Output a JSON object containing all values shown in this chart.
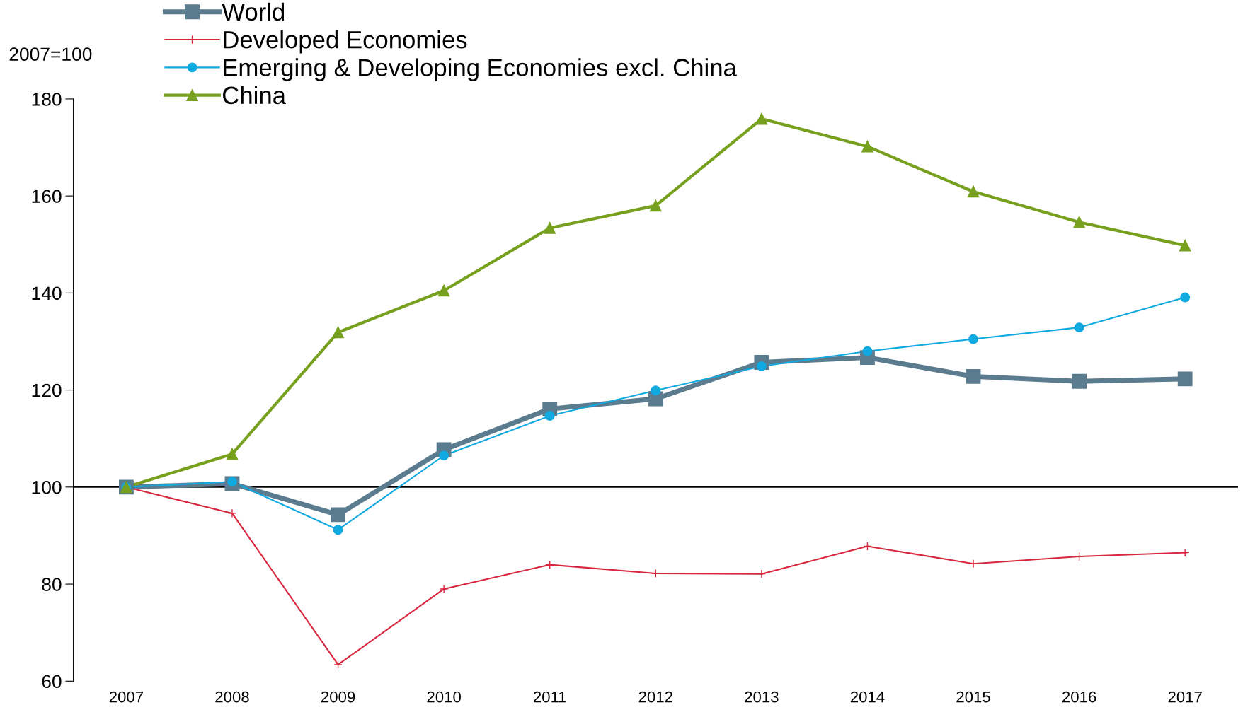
{
  "chart_data": {
    "type": "line",
    "ylabel": "2007=100",
    "categories": [
      "2007",
      "2008",
      "2009",
      "2010",
      "2011",
      "2012",
      "2013",
      "2014",
      "2015",
      "2016",
      "2017"
    ],
    "series": [
      {
        "name": "World",
        "color": "#5b7b8e",
        "marker": "square",
        "values": [
          100,
          100.7,
          94.3,
          107.7,
          116.1,
          118.2,
          125.7,
          126.7,
          122.8,
          121.8,
          122.3
        ]
      },
      {
        "name": "Developed Economies",
        "color": "#d7263d",
        "marker": "cross",
        "values": [
          100,
          94.6,
          63.4,
          79,
          84,
          82.2,
          82.1,
          87.8,
          84.2,
          85.7,
          86.5
        ]
      },
      {
        "name": "Emerging & Developing Economies excl. China",
        "color": "#10a9e0",
        "marker": "circle",
        "values": [
          100,
          101.1,
          91.2,
          106.5,
          114.7,
          119.9,
          124.9,
          128,
          130.5,
          132.9,
          139.1
        ]
      },
      {
        "name": "China",
        "color": "#76a01d",
        "marker": "triangle",
        "values": [
          100,
          106.8,
          131.9,
          140.5,
          153.4,
          158,
          175.9,
          170.2,
          160.9,
          154.6,
          149.8
        ]
      }
    ],
    "ylim": [
      60,
      180
    ],
    "yticks": [
      60,
      80,
      100,
      120,
      140,
      160,
      180
    ],
    "ref_lines": [
      {
        "axis": "y",
        "value": 100,
        "color": "#000000"
      }
    ],
    "grid": false,
    "legend": "top left"
  }
}
